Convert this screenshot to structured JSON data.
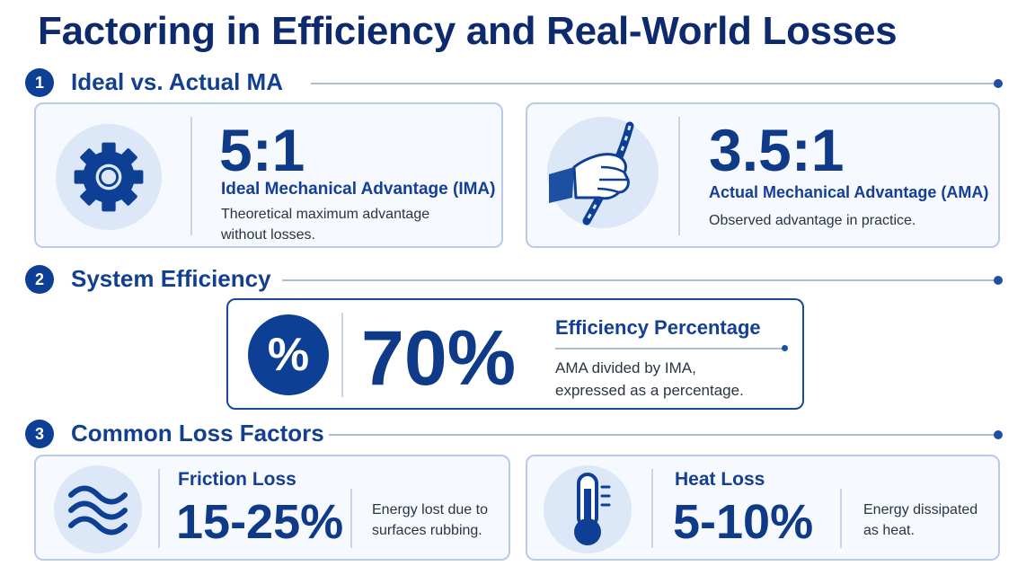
{
  "title": "Factoring in Efficiency and Real-World Losses",
  "sections": [
    {
      "number": "1",
      "label": "Ideal vs. Actual MA"
    },
    {
      "number": "2",
      "label": "System Efficiency"
    },
    {
      "number": "3",
      "label": "Common Loss Factors"
    }
  ],
  "ma_cards": [
    {
      "icon": "gear-icon",
      "value": "5:1",
      "heading": "Ideal Mechanical Advantage (IMA)",
      "desc_lines": [
        "Theoretical maximum advantage",
        "without losses."
      ]
    },
    {
      "icon": "hand-rope-icon",
      "value": "3.5:1",
      "heading": "Actual Mechanical Advantage (AMA)",
      "desc_lines": [
        "Observed advantage in practice."
      ]
    }
  ],
  "efficiency": {
    "icon_symbol": "%",
    "value": "70%",
    "heading": "Efficiency Percentage",
    "desc_lines": [
      "AMA divided by IMA,",
      "expressed as a percentage."
    ]
  },
  "loss_cards": [
    {
      "icon": "waves-icon",
      "heading": "Friction Loss",
      "value": "15-25%",
      "desc_lines": [
        "Energy lost due to",
        "surfaces rubbing."
      ]
    },
    {
      "icon": "thermometer-icon",
      "heading": "Heat Loss",
      "value": "5-10%",
      "desc_lines": [
        "Energy dissipated",
        "as heat."
      ]
    }
  ],
  "colors": {
    "primary": "#0d3f95",
    "card_border": "#b9cbe8",
    "card_bg": "#f6f9fe",
    "icon_bg": "#dce7f8"
  }
}
